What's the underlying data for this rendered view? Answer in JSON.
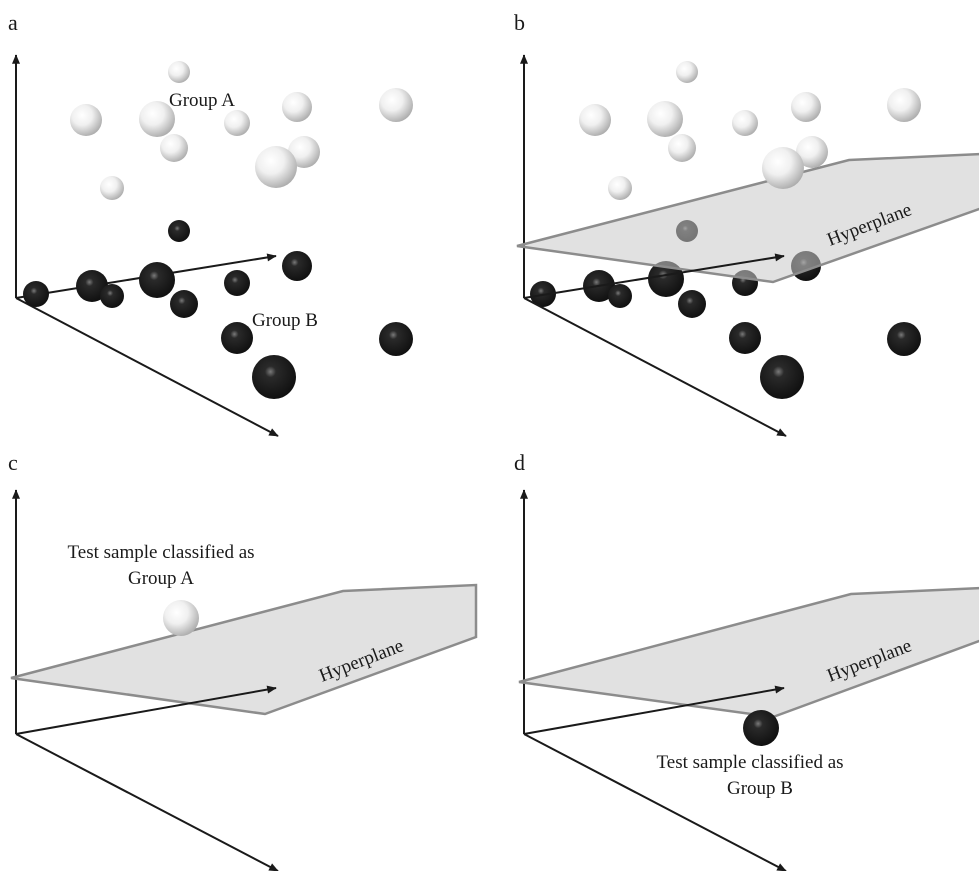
{
  "panels": [
    {
      "label": "a",
      "annotations": [
        "Group A",
        "Group B"
      ]
    },
    {
      "label": "b",
      "annotations": [
        "Hyperplane"
      ]
    },
    {
      "label": "c",
      "annotations": [
        "Test sample classified as",
        "Group A",
        "Hyperplane"
      ]
    },
    {
      "label": "d",
      "annotations": [
        "Hyperplane",
        "Test sample classified as",
        "Group B"
      ]
    }
  ],
  "colors": {
    "group_a": "#e6e6e6",
    "group_b": "#1a1a1a",
    "plane": "#c8c8c8",
    "axis": "#1a1a1a"
  }
}
